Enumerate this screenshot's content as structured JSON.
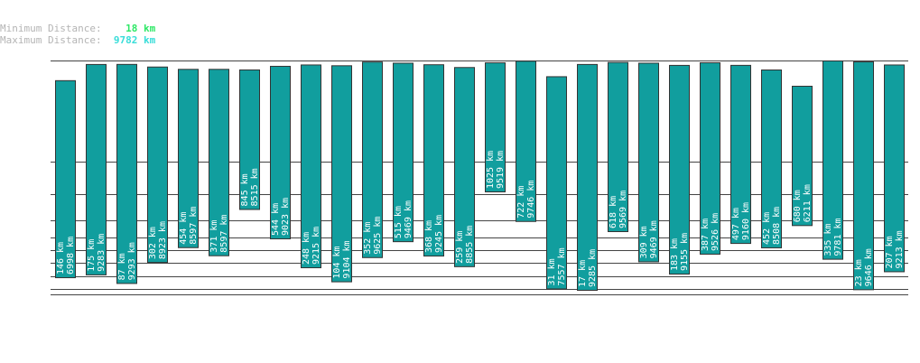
{
  "stats": {
    "min_label": "Minimum Distance:",
    "min_value": "18 km",
    "max_label": "Maximum Distance:",
    "max_value": "9782 km"
  },
  "colors": {
    "bar": "#119e9e",
    "bar_border": "#333333",
    "line": "#444444",
    "label": "#ffffff"
  },
  "chart_data": {
    "type": "bar",
    "unit": "km",
    "ranges": [
      [
        146,
        6998
      ],
      [
        175,
        9283
      ],
      [
        87,
        9293
      ],
      [
        302,
        8923
      ],
      [
        454,
        8597
      ],
      [
        371,
        8597
      ],
      [
        845,
        8515
      ],
      [
        544,
        9023
      ],
      [
        248,
        9215
      ],
      [
        104,
        9104
      ],
      [
        352,
        9625
      ],
      [
        515,
        9469
      ],
      [
        368,
        9245
      ],
      [
        259,
        8855
      ],
      [
        1025,
        9519
      ],
      [
        722,
        9746
      ],
      [
        31,
        7557
      ],
      [
        17,
        9285
      ],
      [
        618,
        9569
      ],
      [
        309,
        9469
      ],
      [
        183,
        9155
      ],
      [
        387,
        9526
      ],
      [
        497,
        9160
      ],
      [
        452,
        8508
      ],
      [
        680,
        6211
      ],
      [
        335,
        9781
      ],
      [
        23,
        9646
      ],
      [
        207,
        9213
      ]
    ],
    "guide_lines": [
      67,
      179,
      215,
      244,
      263,
      277,
      291,
      306,
      320,
      326
    ]
  }
}
